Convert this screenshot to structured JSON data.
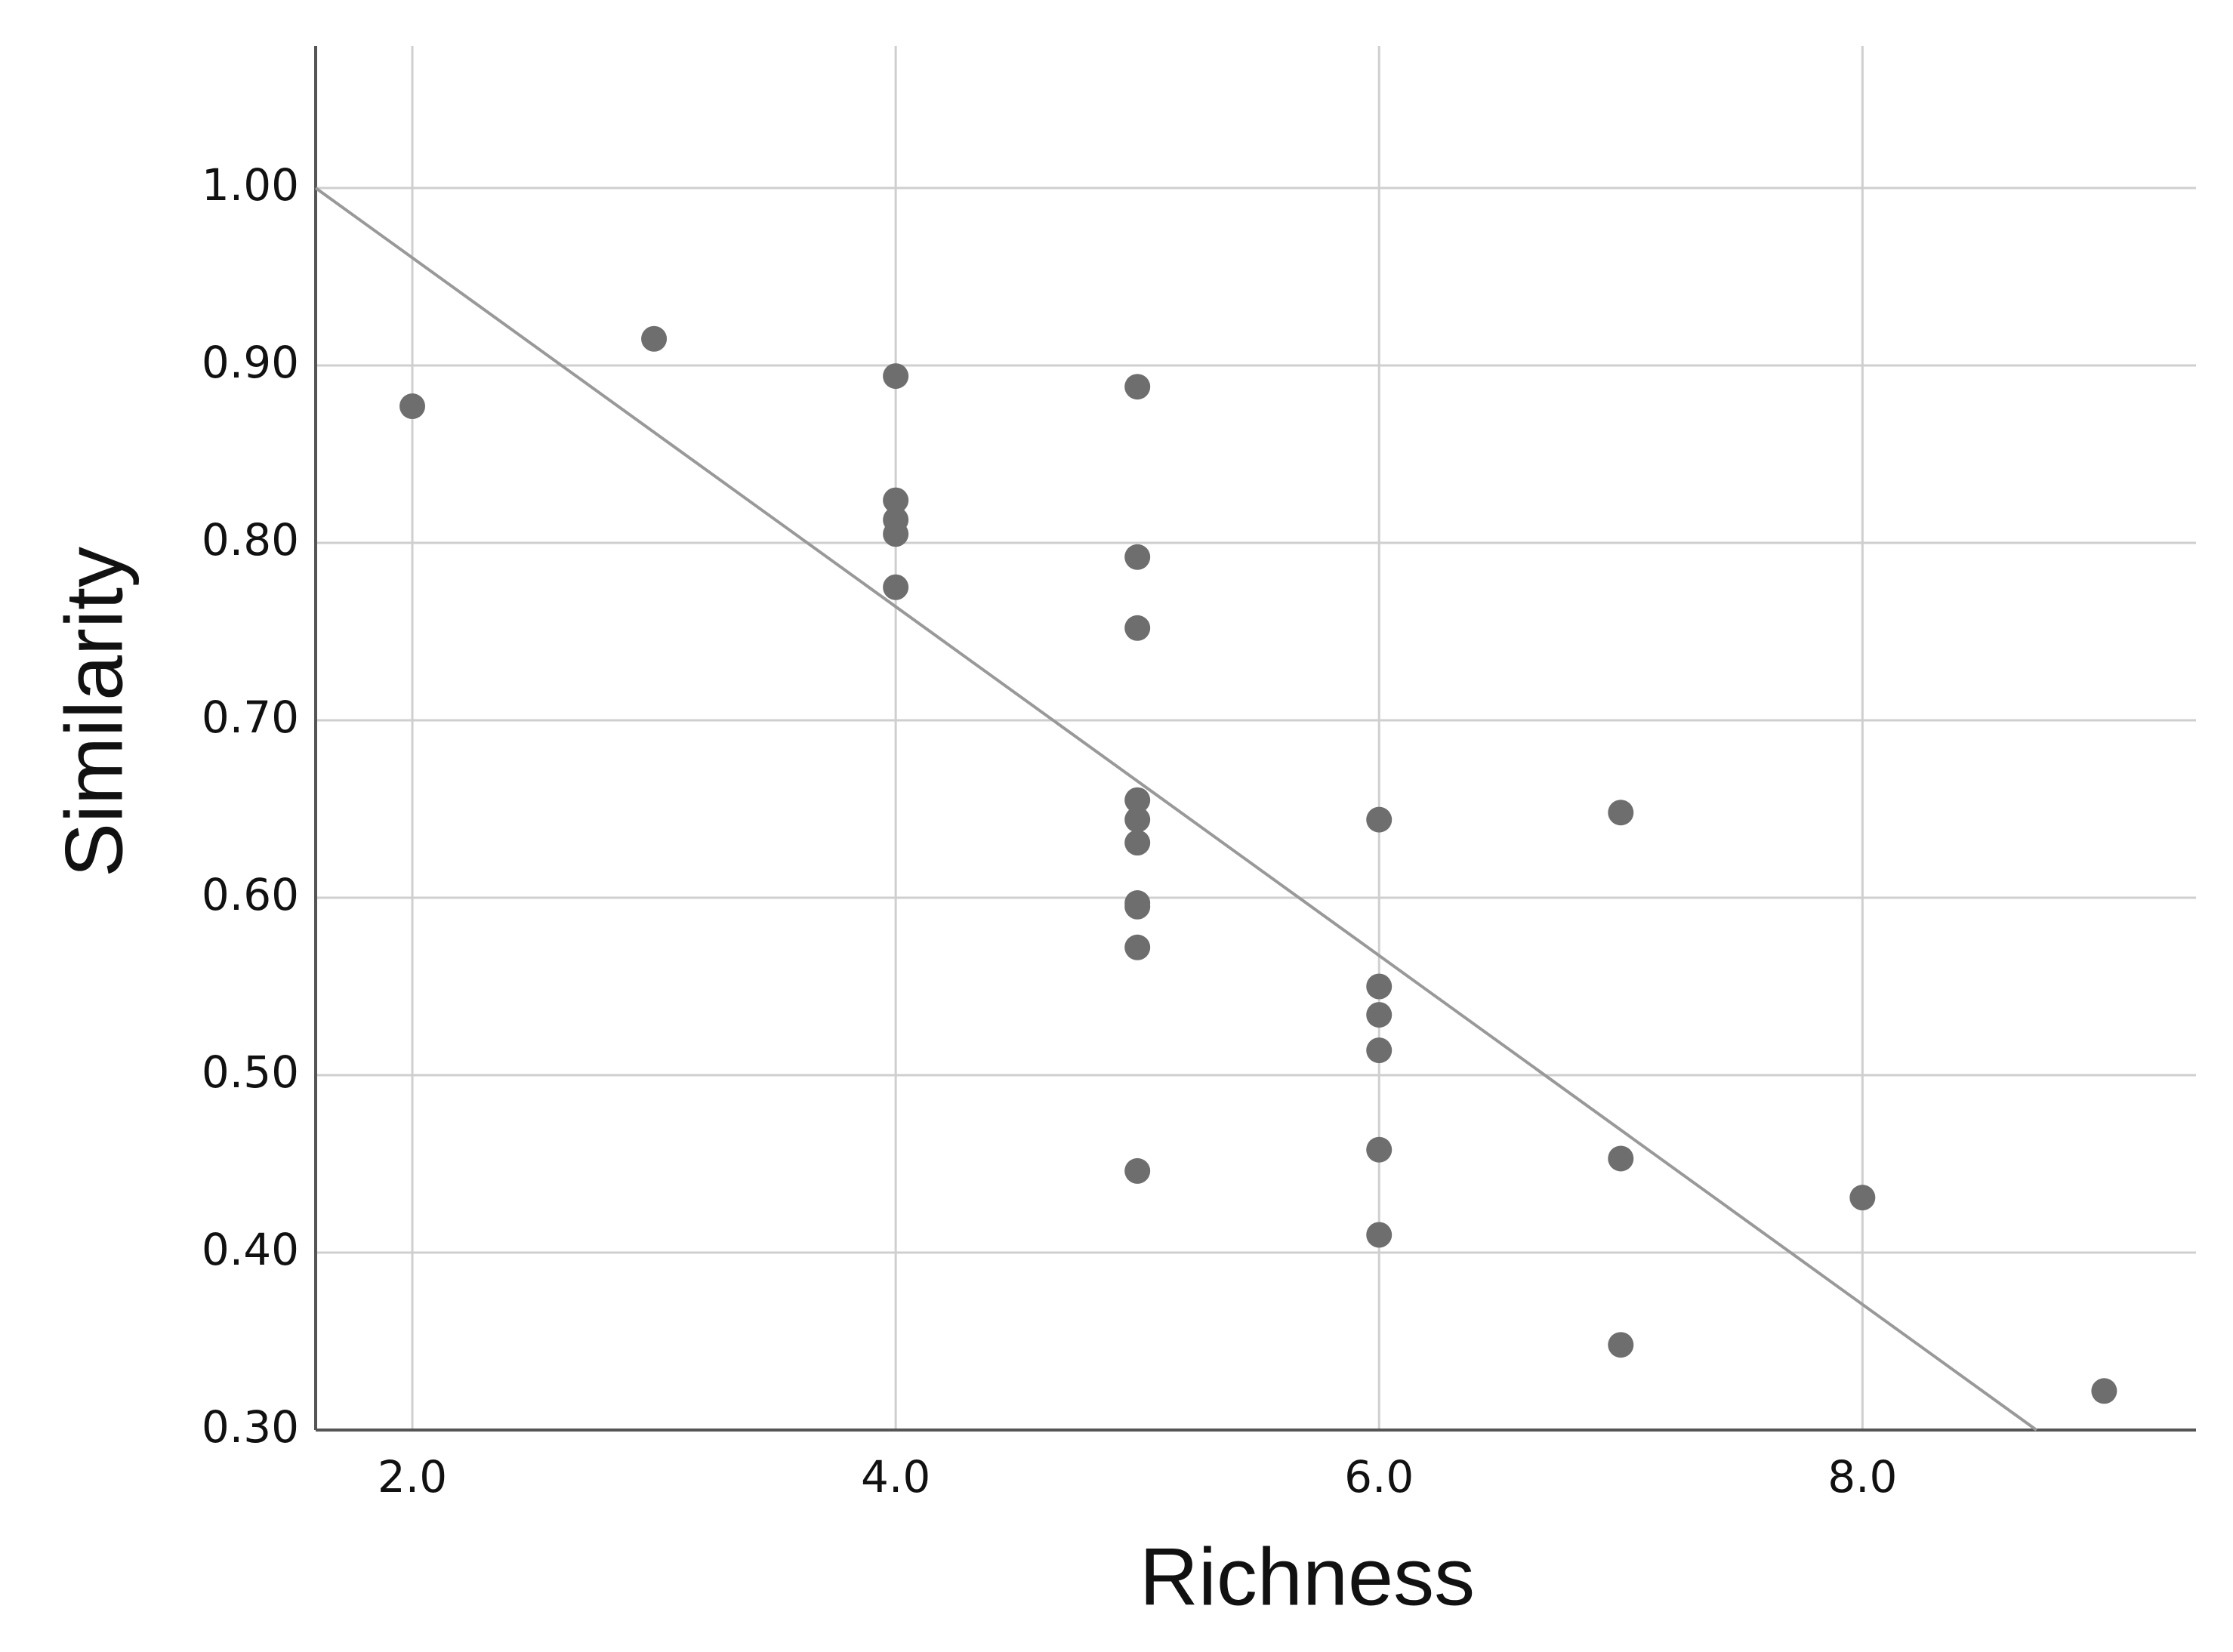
{
  "chart_data": {
    "type": "scatter",
    "x_label": "Richness",
    "y_label": "Similarity",
    "x": [
      2,
      3,
      4,
      4,
      4,
      4,
      4,
      5,
      5,
      5,
      5,
      5,
      5,
      5,
      5,
      5,
      5,
      6,
      6,
      6,
      6,
      6,
      6,
      7,
      7,
      7,
      8,
      9
    ],
    "series": [
      {
        "color": "#6e6e6e",
        "values": [
          0.877,
          0.915,
          0.894,
          0.824,
          0.813,
          0.805,
          0.775,
          0.888,
          0.792,
          0.752,
          0.655,
          0.644,
          0.631,
          0.597,
          0.595,
          0.572,
          0.446,
          0.644,
          0.55,
          0.534,
          0.514,
          0.458,
          0.41,
          0.648,
          0.453,
          0.348,
          0.431,
          0.322
        ]
      }
    ],
    "fit_line": {
      "x": [
        1.6,
        8.72
      ],
      "y": [
        1.0,
        0.3
      ],
      "color": "#999999"
    },
    "xlim": [
      1.6,
      9.38
    ],
    "ylim": [
      0.3,
      1.08
    ],
    "xticks": [
      {
        "value": 2,
        "label": "2.0"
      },
      {
        "value": 4,
        "label": "4.0"
      },
      {
        "value": 6,
        "label": "6.0"
      },
      {
        "value": 8,
        "label": "8.0"
      }
    ],
    "yticks": [
      {
        "value": 0.3,
        "label": "0.30"
      },
      {
        "value": 0.4,
        "label": "0.40"
      },
      {
        "value": 0.5,
        "label": "0.50"
      },
      {
        "value": 0.6,
        "label": "0.60"
      },
      {
        "value": 0.7,
        "label": "0.70"
      },
      {
        "value": 0.8,
        "label": "0.80"
      },
      {
        "value": 0.9,
        "label": "0.90"
      },
      {
        "value": 1.0,
        "label": "1.00"
      }
    ],
    "grid": true
  }
}
